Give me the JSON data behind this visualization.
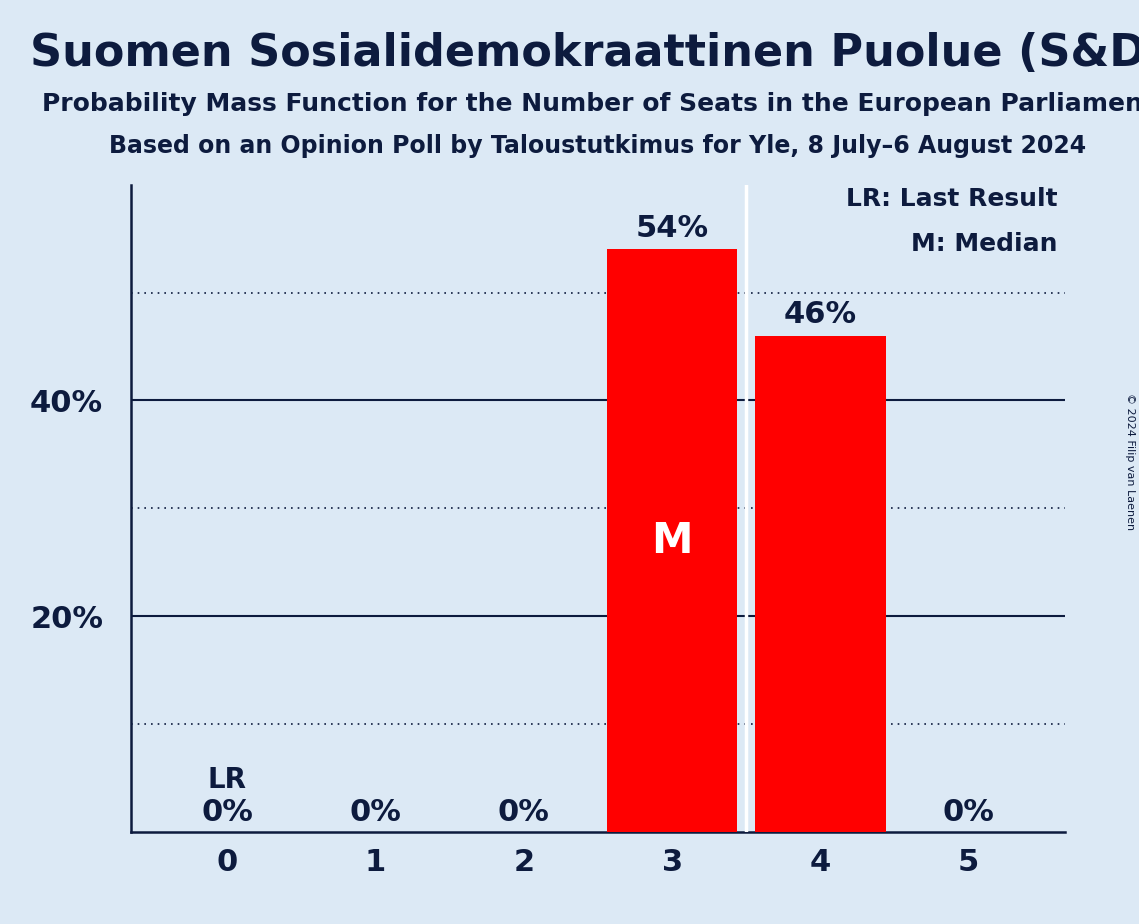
{
  "title": "Suomen Sosialidemokraattinen Puolue (S&D)",
  "subtitle1": "Probability Mass Function for the Number of Seats in the European Parliament",
  "subtitle2": "Based on an Opinion Poll by Taloustutkimus for Yle, 8 July–6 August 2024",
  "copyright": "© 2024 Filip van Laenen",
  "categories": [
    0,
    1,
    2,
    3,
    4,
    5
  ],
  "values": [
    0.0,
    0.0,
    0.0,
    0.54,
    0.46,
    0.0
  ],
  "bar_color": "#ff0000",
  "background_color": "#dce9f5",
  "text_color": "#0d1b3e",
  "median_bar": 3,
  "lr_bar": 0,
  "ylim": [
    0,
    0.6
  ],
  "yticks": [
    0.2,
    0.4
  ],
  "dotted_lines": [
    0.1,
    0.3,
    0.5
  ],
  "legend_lr": "LR: Last Result",
  "legend_m": "M: Median",
  "bar_width": 0.88,
  "title_fontsize": 32,
  "subtitle_fontsize": 18,
  "tick_fontsize": 22,
  "label_fontsize": 22,
  "lr_label_fontsize": 20,
  "legend_fontsize": 18,
  "m_fontsize": 30
}
